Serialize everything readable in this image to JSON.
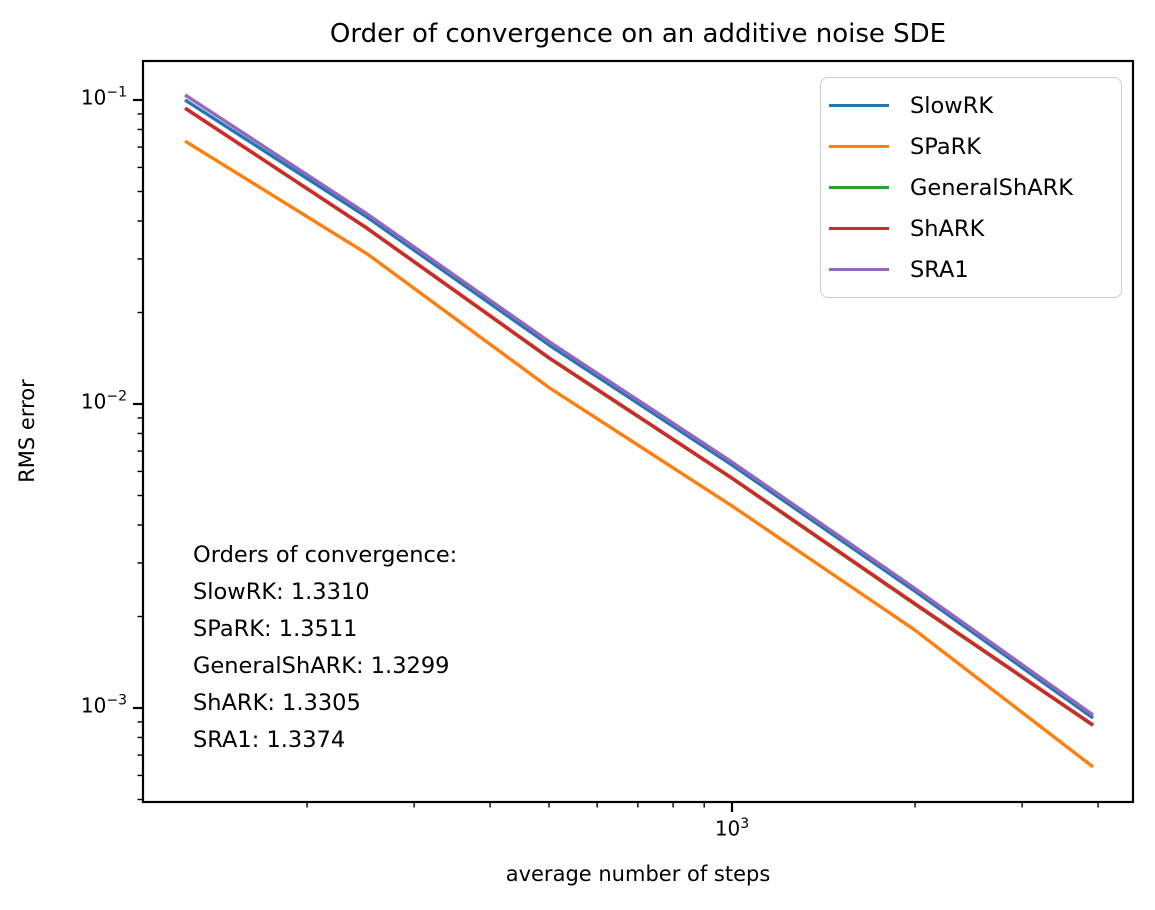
{
  "title": "Order of convergence on an additive noise SDE",
  "axes": {
    "xlabel": "average number of steps",
    "ylabel": "RMS error",
    "x_major_ticks": [
      {
        "value": 1000,
        "base": "10",
        "exp": "3"
      }
    ],
    "y_major_ticks": [
      {
        "value": 0.1,
        "base": "10",
        "exp": "−1"
      },
      {
        "value": 0.01,
        "base": "10",
        "exp": "−2"
      },
      {
        "value": 0.001,
        "base": "10",
        "exp": "−3"
      }
    ]
  },
  "annotation": {
    "lines": [
      "Orders of convergence:",
      "SlowRK: 1.3310",
      "SPaRK: 1.3511",
      "GeneralShARK: 1.3299",
      "ShARK: 1.3305",
      "SRA1: 1.3374"
    ]
  },
  "legend": {
    "entries": [
      {
        "label": "SlowRK",
        "color": "#1f77b4"
      },
      {
        "label": "SPaRK",
        "color": "#ff7f0e"
      },
      {
        "label": "GeneralShARK",
        "color": "#2ca02c"
      },
      {
        "label": "ShARK",
        "color": "#d62728"
      },
      {
        "label": "SRA1",
        "color": "#9467bd"
      }
    ]
  },
  "chart_data": {
    "type": "line",
    "x_scale": "log",
    "y_scale": "log",
    "title": "Order of convergence on an additive noise SDE",
    "xlabel": "average number of steps",
    "ylabel": "RMS error",
    "xlim_log10": [
      2.0312,
      3.6595
    ],
    "ylim_log10": [
      -3.3092,
      -0.8717
    ],
    "grid": false,
    "legend_position": "upper right",
    "x": [
      126,
      251,
      501,
      1000,
      1995,
      3925
    ],
    "series": [
      {
        "name": "SlowRK",
        "color": "#1f77b4",
        "order": 1.331,
        "values": [
          0.1,
          0.0412,
          0.0156,
          0.0063,
          0.00243,
          0.000927
        ]
      },
      {
        "name": "SPaRK",
        "color": "#ff7f0e",
        "order": 1.3511,
        "values": [
          0.0733,
          0.0312,
          0.0113,
          0.00462,
          0.00181,
          0.00064
        ]
      },
      {
        "name": "GeneralShARK",
        "color": "#2ca02c",
        "order": 1.3299,
        "values": [
          0.0939,
          0.0378,
          0.01412,
          0.00569,
          0.0022,
          0.000876
        ]
      },
      {
        "name": "ShARK",
        "color": "#d62728",
        "order": 1.3305,
        "values": [
          0.0941,
          0.0379,
          0.01417,
          0.00571,
          0.00221,
          0.000879
        ]
      },
      {
        "name": "SRA1",
        "color": "#9467bd",
        "order": 1.3374,
        "values": [
          0.1039,
          0.0422,
          0.016,
          0.00644,
          0.00248,
          0.000948
        ]
      }
    ]
  }
}
